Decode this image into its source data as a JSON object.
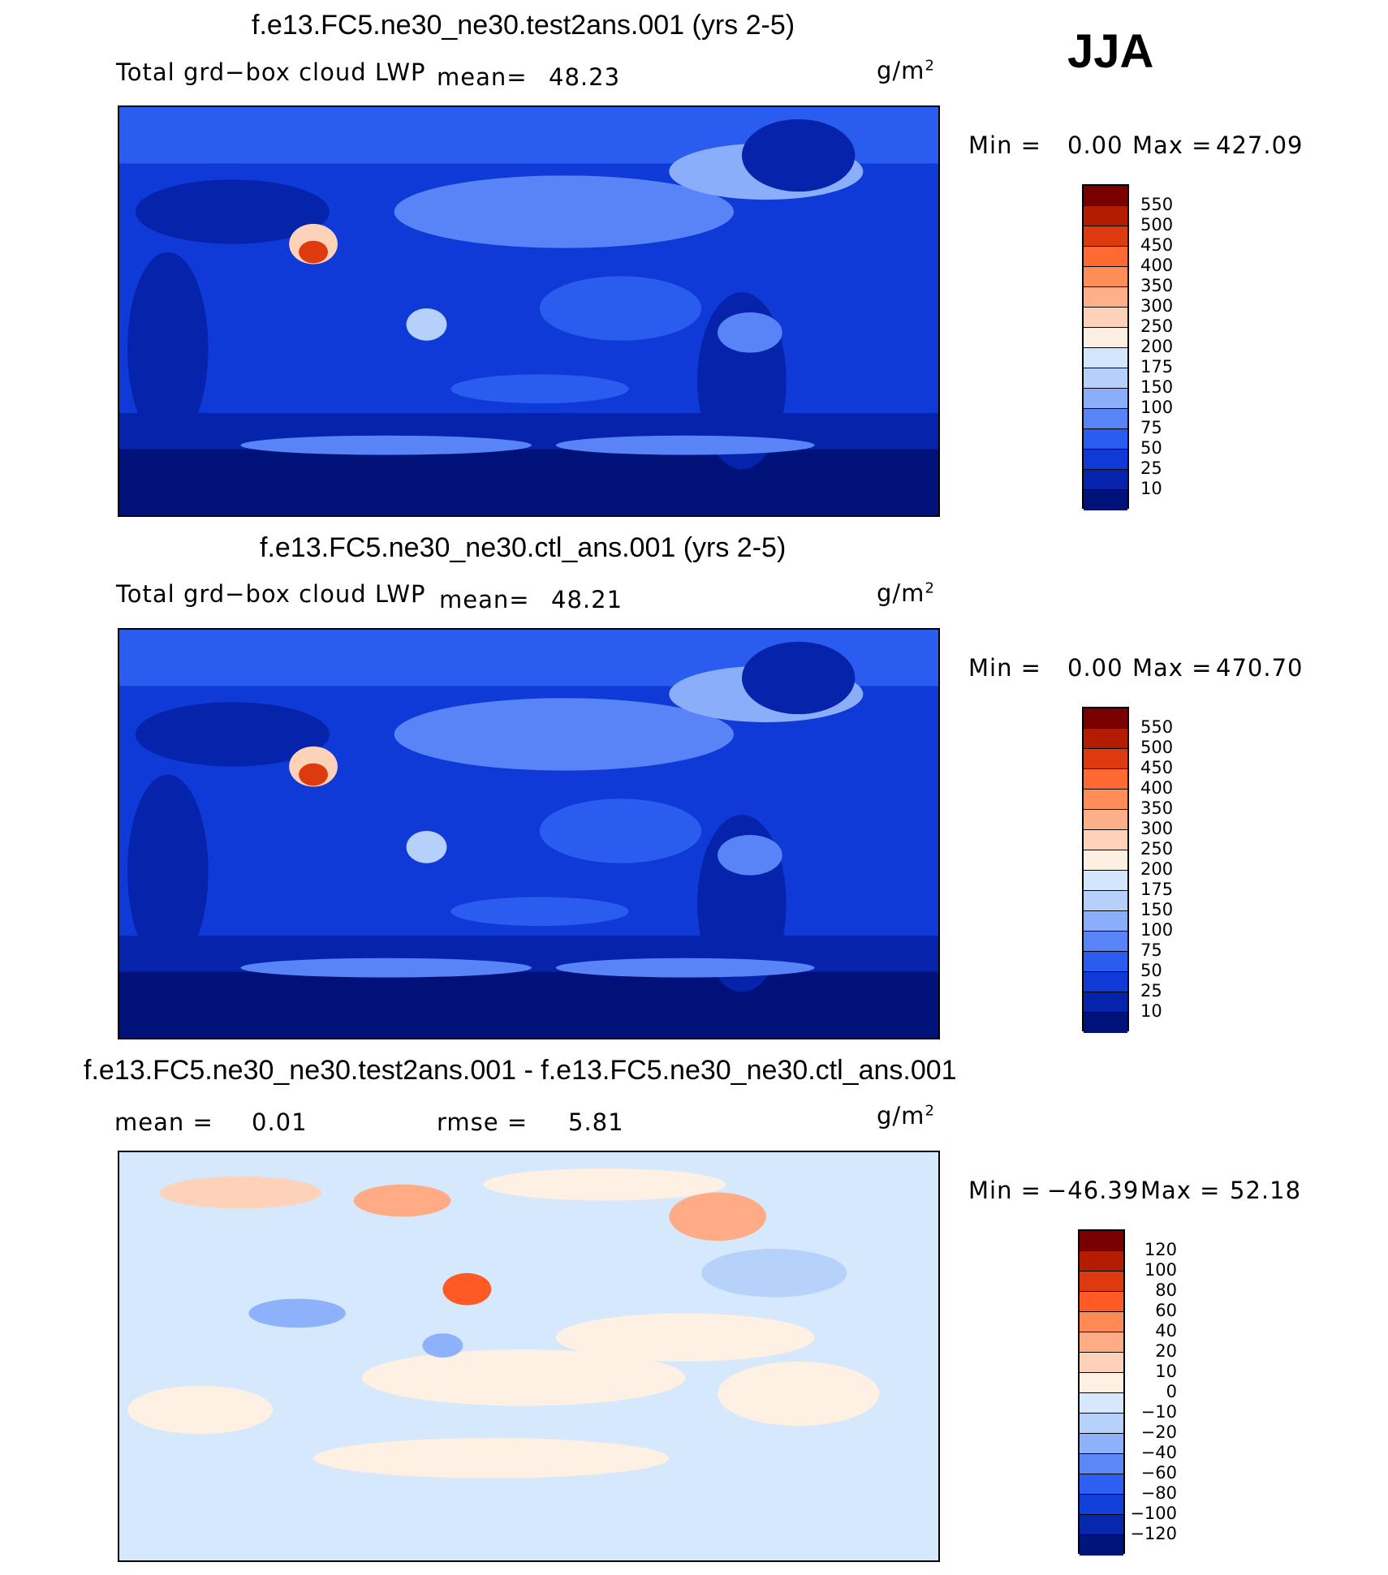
{
  "season": "JJA",
  "panels": [
    {
      "title": "f.e13.FC5.ne30_ne30.test2ans.001 (yrs 2-5)",
      "variable": "Total grd−box cloud LWP",
      "mean_label": "mean=",
      "mean_value": "48.23",
      "units_base": "g/m",
      "units_exp": "2",
      "min_label": "Min =",
      "min_value": "0.00",
      "max_label": "Max =",
      "max_value": "427.09",
      "levels": [
        "550",
        "500",
        "450",
        "400",
        "350",
        "300",
        "250",
        "200",
        "175",
        "150",
        "100",
        "75",
        "50",
        "25",
        "10"
      ],
      "colors": [
        "#7a0000",
        "#b41c00",
        "#de3a10",
        "#ff6a33",
        "#ff8d58",
        "#ffb088",
        "#fdd2b8",
        "#fdf0e2",
        "#d4e6fb",
        "#b5d0fb",
        "#8aaef9",
        "#5884f7",
        "#2b5cf0",
        "#0f3ad8",
        "#0623ab",
        "#00127a"
      ]
    },
    {
      "title": "f.e13.FC5.ne30_ne30.ctl_ans.001 (yrs 2-5)",
      "variable": "Total grd−box cloud LWP",
      "mean_label": "mean=",
      "mean_value": "48.21",
      "units_base": "g/m",
      "units_exp": "2",
      "min_label": "Min =",
      "min_value": "0.00",
      "max_label": "Max =",
      "max_value": "470.70",
      "levels": [
        "550",
        "500",
        "450",
        "400",
        "350",
        "300",
        "250",
        "200",
        "175",
        "150",
        "100",
        "75",
        "50",
        "25",
        "10"
      ],
      "colors": [
        "#7a0000",
        "#b41c00",
        "#de3a10",
        "#ff6a33",
        "#ff8d58",
        "#ffb088",
        "#fdd2b8",
        "#fdf0e2",
        "#d4e6fb",
        "#b5d0fb",
        "#8aaef9",
        "#5884f7",
        "#2b5cf0",
        "#0f3ad8",
        "#0623ab",
        "#00127a"
      ]
    },
    {
      "title": "f.e13.FC5.ne30_ne30.test2ans.001 - f.e13.FC5.ne30_ne30.ctl_ans.001",
      "mean_label": "mean =",
      "mean_value": "0.01",
      "rmse_label": "rmse =",
      "rmse_value": "5.81",
      "units_base": "g/m",
      "units_exp": "2",
      "min_label": "Min =",
      "min_value": "−46.39",
      "max_label": "Max =",
      "max_value": "52.18",
      "levels": [
        "120",
        "100",
        "80",
        "60",
        "40",
        "20",
        "10",
        "0",
        "−10",
        "−20",
        "−40",
        "−60",
        "−80",
        "−100",
        "−120"
      ],
      "colors": [
        "#7a0000",
        "#b41c00",
        "#de3a10",
        "#ff5a26",
        "#ff8a55",
        "#ffab85",
        "#fdd2b8",
        "#fef0e2",
        "#d6e8fb",
        "#b6d2fb",
        "#8db1fa",
        "#5a88f7",
        "#2d5ff2",
        "#1240da",
        "#0628ad",
        "#00157c"
      ]
    }
  ]
}
